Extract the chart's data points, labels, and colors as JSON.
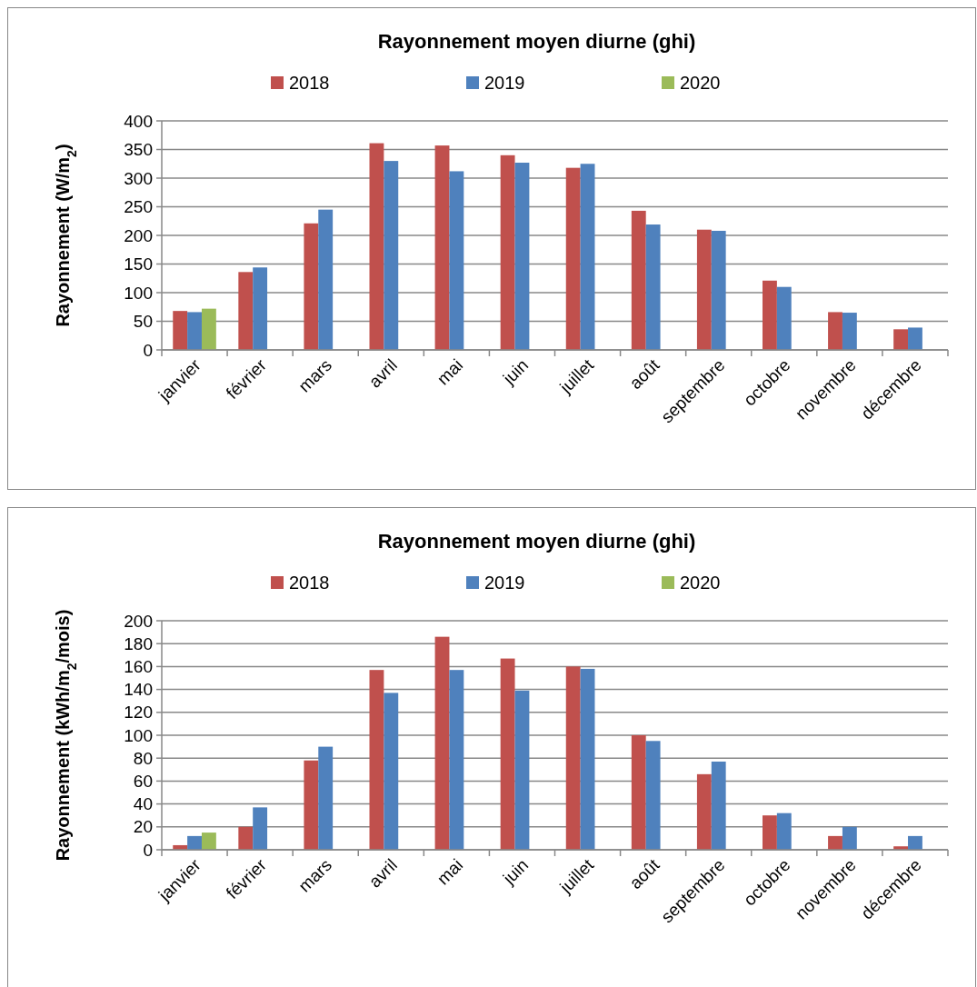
{
  "chart_data": [
    {
      "type": "bar",
      "title": "Rayonnement moyen diurne (ghi)",
      "ylabel": "Rayonnement (W/m$_{2}$)",
      "categories": [
        "janvier",
        "février",
        "mars",
        "avril",
        "mai",
        "juin",
        "juillet",
        "août",
        "septembre",
        "octobre",
        "novembre",
        "décembre"
      ],
      "series": [
        {
          "name": "2018",
          "color": "#c0504d",
          "values": [
            68,
            136,
            221,
            361,
            357,
            340,
            318,
            243,
            210,
            121,
            66,
            36
          ]
        },
        {
          "name": "2019",
          "color": "#4f81bd",
          "values": [
            66,
            144,
            245,
            330,
            312,
            327,
            325,
            219,
            208,
            110,
            65,
            39
          ]
        },
        {
          "name": "2020",
          "color": "#9bbb59",
          "values": [
            72,
            null,
            null,
            null,
            null,
            null,
            null,
            null,
            null,
            null,
            null,
            null
          ]
        }
      ],
      "ylim": [
        0,
        400
      ],
      "yticks": [
        0,
        50,
        100,
        150,
        200,
        250,
        300,
        350,
        400
      ],
      "grid": "y",
      "legend": "top"
    },
    {
      "type": "bar",
      "title": "Rayonnement moyen diurne (ghi)",
      "ylabel": "Rayonnement (kWh/m$_{2}$/mois)",
      "categories": [
        "janvier",
        "février",
        "mars",
        "avril",
        "mai",
        "juin",
        "juillet",
        "août",
        "septembre",
        "octobre",
        "novembre",
        "décembre"
      ],
      "series": [
        {
          "name": "2018",
          "color": "#c0504d",
          "values": [
            4,
            20,
            78,
            157,
            186,
            167,
            160,
            100,
            66,
            30,
            12,
            3
          ]
        },
        {
          "name": "2019",
          "color": "#4f81bd",
          "values": [
            12,
            37,
            90,
            137,
            157,
            139,
            158,
            95,
            77,
            32,
            20,
            12
          ]
        },
        {
          "name": "2020",
          "color": "#9bbb59",
          "values": [
            15,
            null,
            null,
            null,
            null,
            null,
            null,
            null,
            null,
            null,
            null,
            null
          ]
        }
      ],
      "ylim": [
        0,
        200
      ],
      "yticks": [
        0,
        20,
        40,
        60,
        80,
        100,
        120,
        140,
        160,
        180,
        200
      ],
      "grid": "y",
      "legend": "top"
    }
  ]
}
